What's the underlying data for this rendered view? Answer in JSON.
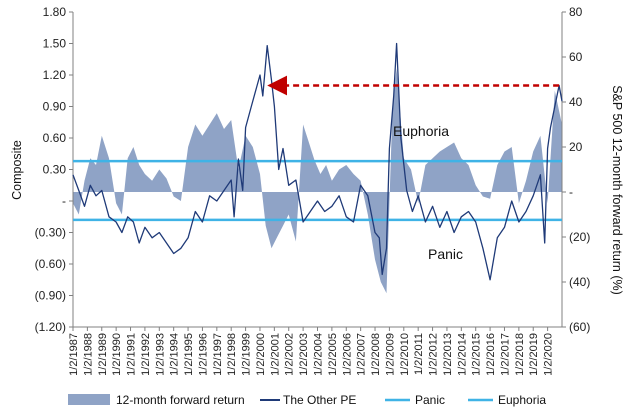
{
  "chart_data": {
    "type": "line",
    "left_axis": {
      "title": "Composite",
      "ylim": [
        -1.2,
        1.8
      ],
      "ticks": [
        1.8,
        1.5,
        1.2,
        0.9,
        0.6,
        0.3,
        0,
        -0.3,
        -0.6,
        -0.9,
        -1.2
      ],
      "tick_labels": [
        "1.80",
        "1.50",
        "1.20",
        "0.90",
        "0.60",
        "0.30",
        "-",
        "(0.30)",
        "(0.60)",
        "(0.90)",
        "(1.20)"
      ]
    },
    "right_axis": {
      "title": "S&P 500 12-month forward return (%)",
      "ylim": [
        -60,
        80
      ],
      "ticks": [
        80,
        60,
        40,
        20,
        0,
        -20,
        -40,
        -60
      ],
      "tick_labels": [
        "80",
        "60",
        "40",
        "20",
        "-",
        "(20)",
        "(40)",
        "(60)"
      ]
    },
    "x_axis": {
      "range": [
        1987,
        2021
      ],
      "tick_years": [
        1987,
        1988,
        1989,
        1990,
        1991,
        1992,
        1993,
        1994,
        1995,
        1996,
        1997,
        1998,
        1999,
        2000,
        2001,
        2002,
        2003,
        2004,
        2005,
        2006,
        2007,
        2008,
        2009,
        2010,
        2011,
        2012,
        2013,
        2014,
        2015,
        2016,
        2017,
        2018,
        2019,
        2020
      ],
      "tick_labels": [
        "1/2/1987",
        "1/2/1988",
        "1/2/1989",
        "1/2/1990",
        "1/2/1991",
        "1/2/1992",
        "1/2/1993",
        "1/2/1994",
        "1/2/1995",
        "1/2/1996",
        "1/2/1997",
        "1/2/1998",
        "1/2/1999",
        "1/2/2000",
        "1/2/2001",
        "1/2/2002",
        "1/2/2003",
        "1/2/2004",
        "1/2/2005",
        "1/2/2006",
        "1/2/2007",
        "1/2/2008",
        "1/2/2009",
        "1/2/2010",
        "1/2/2011",
        "1/2/2012",
        "1/2/2013",
        "1/2/2014",
        "1/2/2015",
        "1/2/2016",
        "1/2/2017",
        "1/2/2018",
        "1/2/2019",
        "1/2/2020"
      ]
    },
    "series": [
      {
        "name": "12-month forward return",
        "kind": "area",
        "axis": "right",
        "color": "#8fa3c6",
        "x": [
          1987.0,
          1987.4,
          1987.8,
          1988.2,
          1988.6,
          1989.0,
          1989.5,
          1990.0,
          1990.4,
          1990.8,
          1991.2,
          1991.6,
          1992.0,
          1992.5,
          1993.0,
          1993.5,
          1994.0,
          1994.5,
          1995.0,
          1995.5,
          1996.0,
          1996.5,
          1997.0,
          1997.5,
          1998.0,
          1998.5,
          1999.0,
          1999.5,
          2000.0,
          2000.4,
          2000.8,
          2001.2,
          2001.6,
          2002.0,
          2002.5,
          2003.0,
          2003.4,
          2003.8,
          2004.2,
          2004.6,
          2005.0,
          2005.5,
          2006.0,
          2006.5,
          2007.0,
          2007.5,
          2008.0,
          2008.4,
          2008.8,
          2009.2,
          2009.5,
          2010.0,
          2010.5,
          2011.0,
          2011.5,
          2012.0,
          2012.5,
          2013.0,
          2013.5,
          2014.0,
          2014.5,
          2015.0,
          2015.5,
          2016.0,
          2016.5,
          2017.0,
          2017.5,
          2018.0,
          2018.5,
          2019.0,
          2019.5,
          2020.0,
          2020.5,
          2021.0
        ],
        "values": [
          -5,
          -10,
          5,
          15,
          12,
          25,
          15,
          -5,
          -10,
          15,
          20,
          12,
          8,
          5,
          10,
          6,
          -2,
          -4,
          20,
          30,
          25,
          30,
          35,
          28,
          32,
          10,
          25,
          20,
          8,
          -15,
          -25,
          -20,
          -15,
          -10,
          -22,
          30,
          22,
          14,
          8,
          12,
          5,
          10,
          12,
          8,
          5,
          -10,
          -30,
          -40,
          -45,
          35,
          55,
          15,
          10,
          -5,
          12,
          15,
          18,
          20,
          22,
          15,
          12,
          3,
          -2,
          -3,
          12,
          18,
          20,
          -5,
          5,
          18,
          25,
          -5,
          45,
          30
        ]
      },
      {
        "name": "The Other PE",
        "kind": "line",
        "axis": "left",
        "color": "#1f3a78",
        "x": [
          1987.0,
          1987.4,
          1987.8,
          1988.2,
          1988.6,
          1989.0,
          1989.5,
          1990.0,
          1990.4,
          1990.8,
          1991.2,
          1991.6,
          1992.0,
          1992.5,
          1993.0,
          1993.5,
          1994.0,
          1994.5,
          1995.0,
          1995.5,
          1996.0,
          1996.5,
          1997.0,
          1997.5,
          1998.0,
          1998.2,
          1998.5,
          1998.8,
          1999.0,
          1999.4,
          1999.8,
          2000.0,
          2000.2,
          2000.5,
          2000.8,
          2001.0,
          2001.3,
          2001.6,
          2002.0,
          2002.5,
          2003.0,
          2003.5,
          2004.0,
          2004.5,
          2005.0,
          2005.5,
          2006.0,
          2006.5,
          2007.0,
          2007.5,
          2008.0,
          2008.3,
          2008.5,
          2008.8,
          2009.0,
          2009.3,
          2009.5,
          2009.8,
          2010.2,
          2010.6,
          2011.0,
          2011.5,
          2012.0,
          2012.5,
          2013.0,
          2013.5,
          2014.0,
          2014.5,
          2015.0,
          2015.5,
          2016.0,
          2016.5,
          2017.0,
          2017.5,
          2018.0,
          2018.5,
          2019.0,
          2019.5,
          2019.8,
          2020.0,
          2020.2,
          2020.5,
          2020.8,
          2021.0
        ],
        "values": [
          0.25,
          0.1,
          -0.05,
          0.15,
          0.05,
          0.1,
          -0.15,
          -0.2,
          -0.3,
          -0.15,
          -0.2,
          -0.4,
          -0.25,
          -0.35,
          -0.3,
          -0.4,
          -0.5,
          -0.45,
          -0.35,
          -0.1,
          -0.2,
          0.05,
          0.0,
          0.1,
          0.2,
          -0.15,
          0.4,
          0.1,
          0.7,
          0.9,
          1.1,
          1.2,
          1.0,
          1.48,
          1.15,
          0.9,
          0.3,
          0.5,
          0.15,
          0.2,
          -0.2,
          -0.1,
          0.0,
          -0.1,
          -0.05,
          0.05,
          -0.15,
          -0.2,
          0.15,
          0.05,
          -0.3,
          -0.35,
          -0.7,
          -0.45,
          0.5,
          1.0,
          1.5,
          0.6,
          0.1,
          -0.1,
          0.05,
          -0.2,
          -0.05,
          -0.25,
          -0.1,
          -0.3,
          -0.15,
          -0.1,
          -0.2,
          -0.45,
          -0.75,
          -0.35,
          -0.25,
          0.0,
          -0.2,
          -0.1,
          0.05,
          0.25,
          -0.4,
          0.5,
          0.7,
          0.9,
          1.1,
          0.95
        ]
      },
      {
        "name": "Panic",
        "kind": "hline",
        "axis": "left",
        "color": "#3fb3e6",
        "value": -0.18
      },
      {
        "name": "Euphoria",
        "kind": "hline",
        "axis": "left",
        "color": "#3fb3e6",
        "value": 0.38
      }
    ],
    "annotations": [
      {
        "text": "Euphoria",
        "x": 2011.2,
        "y": 0.62
      },
      {
        "text": "Panic",
        "x": 2012.9,
        "y": -0.55
      }
    ],
    "arrow": {
      "from_x": 2020.8,
      "to_x": 2001.2,
      "y": 1.1,
      "color": "#c00000",
      "style": "dashed"
    },
    "legend": [
      "12-month forward return",
      "The Other PE",
      "Panic",
      "Euphoria"
    ],
    "legend_position": "bottom"
  }
}
